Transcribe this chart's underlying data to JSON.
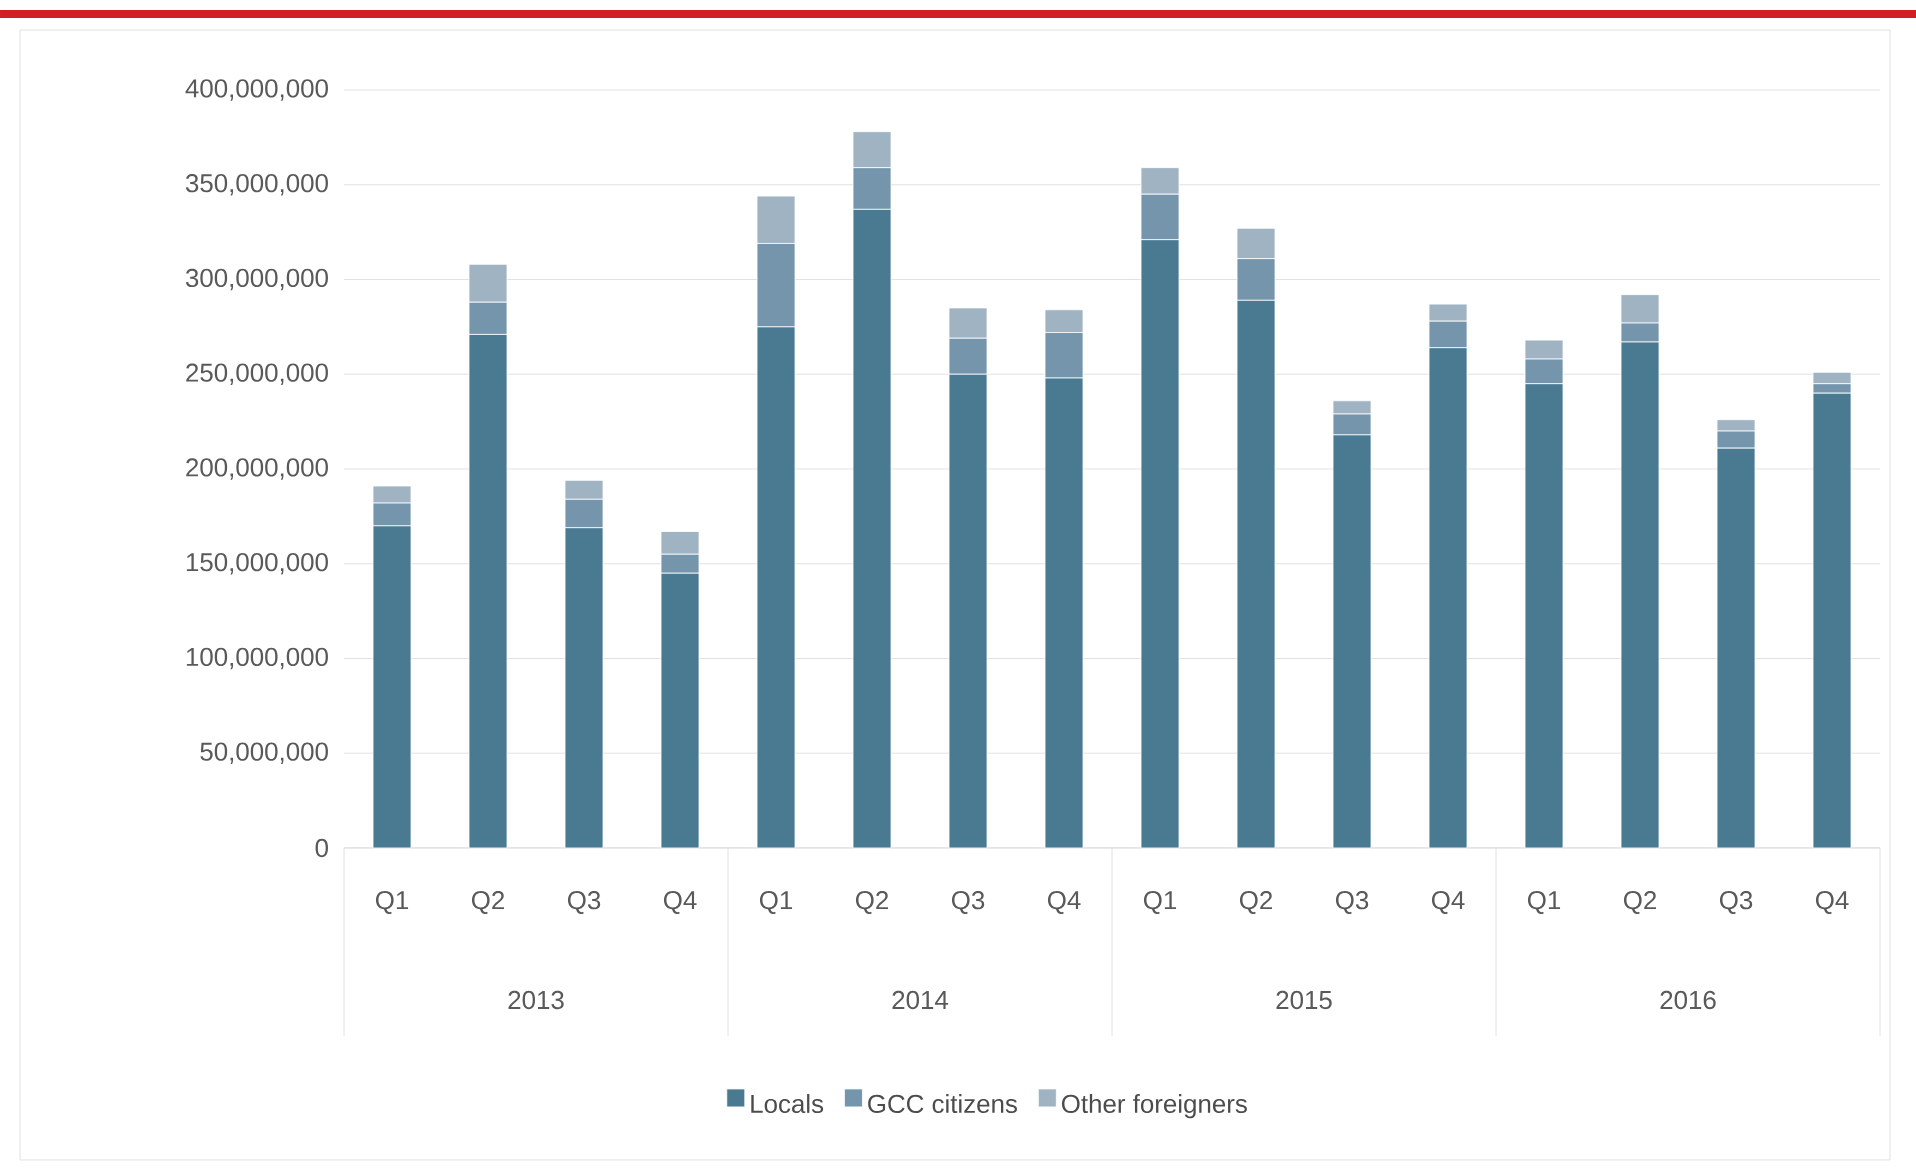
{
  "chart_data": {
    "type": "bar",
    "stacked": true,
    "categories": [
      "Q1",
      "Q2",
      "Q3",
      "Q4",
      "Q1",
      "Q2",
      "Q3",
      "Q4",
      "Q1",
      "Q2",
      "Q3",
      "Q4",
      "Q1",
      "Q2",
      "Q3",
      "Q4"
    ],
    "annotations": [
      "2013",
      "2014",
      "2015",
      "2016"
    ],
    "series": [
      {
        "name": "Locals",
        "color": "#4a7a92",
        "values": [
          170000000,
          271000000,
          169000000,
          145000000,
          275000000,
          337000000,
          250000000,
          248000000,
          321000000,
          289000000,
          218000000,
          264000000,
          245000000,
          267000000,
          211000000,
          240000000
        ]
      },
      {
        "name": "GCC citizens",
        "color": "#7595ad",
        "values": [
          12000000,
          17000000,
          15000000,
          10000000,
          44000000,
          22000000,
          19000000,
          24000000,
          24000000,
          22000000,
          11000000,
          14000000,
          13000000,
          10000000,
          9000000,
          5000000
        ]
      },
      {
        "name": "Other foreigners",
        "color": "#9fb3c2",
        "values": [
          9000000,
          20000000,
          10000000,
          12000000,
          25000000,
          19000000,
          16000000,
          12000000,
          14000000,
          16000000,
          7000000,
          9000000,
          10000000,
          15000000,
          6000000,
          6000000
        ]
      }
    ],
    "ylim": [
      0,
      400000000
    ],
    "yticks": [
      0,
      {
        "value": 50000000,
        "label": "50,000,000"
      },
      {
        "value": 100000000,
        "label": "100,000,000"
      },
      {
        "value": 150000000,
        "label": "150,000,000"
      },
      {
        "value": 200000000,
        "label": "200,000,000"
      },
      {
        "value": 250000000,
        "label": "250,000,000"
      },
      {
        "value": 300000000,
        "label": "300,000,000"
      },
      {
        "value": 350000000,
        "label": "350,000,000"
      },
      {
        "value": 400000000,
        "label": "400,000,000"
      }
    ],
    "grid": "y",
    "legend": "bottom"
  }
}
